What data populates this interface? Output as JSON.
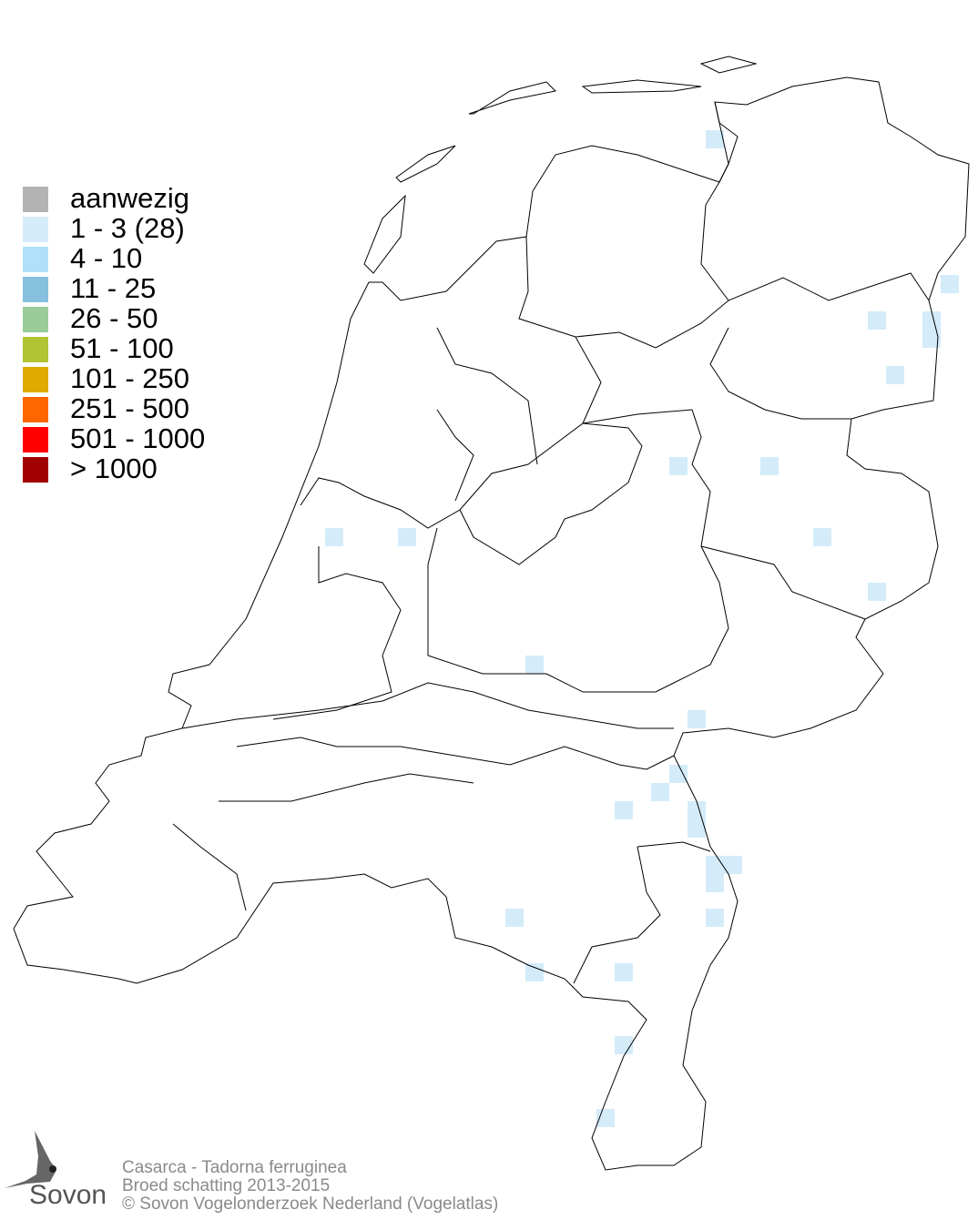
{
  "legend": {
    "items": [
      {
        "label": "aanwezig",
        "color": "#b3b3b3"
      },
      {
        "label": "1 - 3 (28)",
        "color": "#d4ecfa"
      },
      {
        "label": "4 - 10",
        "color": "#b0e0fa"
      },
      {
        "label": "11 - 25",
        "color": "#86c0de"
      },
      {
        "label": "26 - 50",
        "color": "#99cc99"
      },
      {
        "label": "51 - 100",
        "color": "#b0c434"
      },
      {
        "label": "101 - 250",
        "color": "#e0aa00"
      },
      {
        "label": "251 - 500",
        "color": "#ff6600"
      },
      {
        "label": "501 - 1000",
        "color": "#ff0000"
      },
      {
        "label": "> 1000",
        "color": "#a00000"
      }
    ]
  },
  "map": {
    "occupied_class": "1 - 3 (28)",
    "occupied_color": "#d4ecfa",
    "occupied_count": 28
  },
  "footer": {
    "species": "Casarca - Tadorna ferruginea",
    "subtitle": "Broed schatting 2013-2015",
    "copyright": "© Sovon Vogelonderzoek Nederland (Vogelatlas)"
  },
  "logo": {
    "text": "Sovon"
  }
}
